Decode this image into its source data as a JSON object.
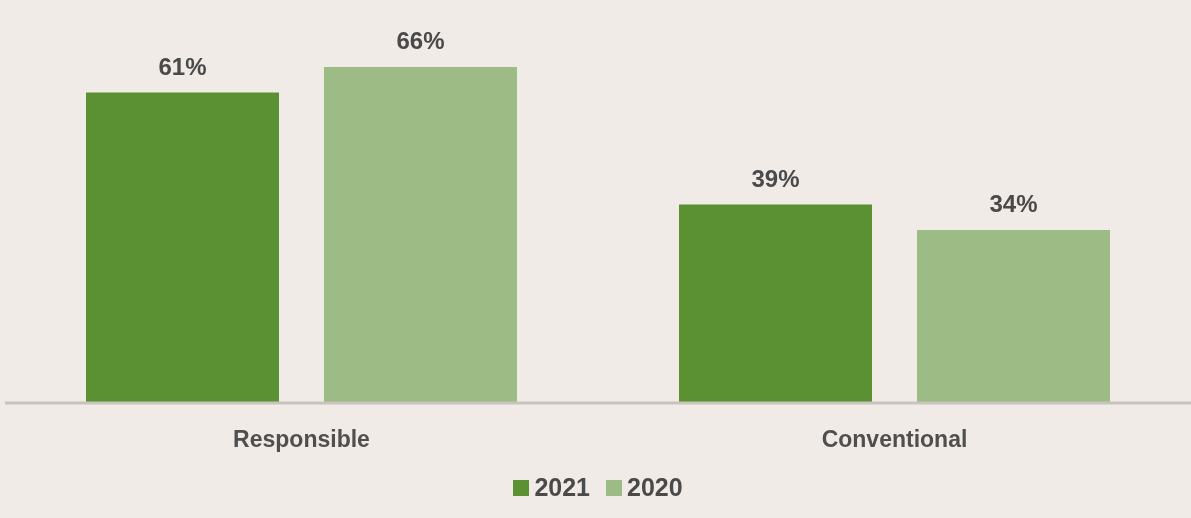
{
  "chart_data": {
    "type": "bar",
    "categories": [
      "Responsible",
      "Conventional"
    ],
    "series": [
      {
        "name": "2021",
        "color": "#5b9132",
        "values": [
          61,
          39
        ],
        "value_labels": [
          "61%",
          "39%"
        ]
      },
      {
        "name": "2020",
        "color": "#9cbb85",
        "values": [
          66,
          34
        ],
        "value_labels": [
          "66%",
          "34%"
        ]
      }
    ],
    "legend": "bottom",
    "grid": false
  }
}
